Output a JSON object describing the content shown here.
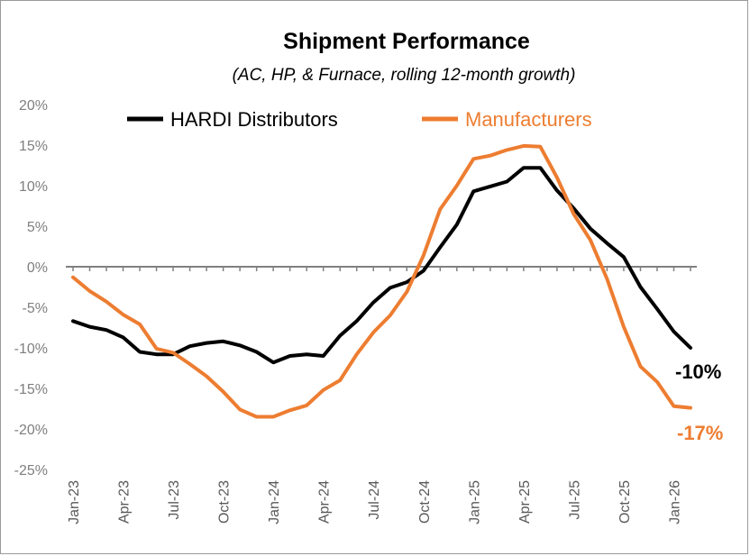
{
  "chart_data": {
    "type": "line",
    "title": "Shipment Performance",
    "subtitle": "(AC, HP, & Furnace, rolling 12-month growth)",
    "xlabel": "",
    "ylabel": "",
    "ylim": [
      -25,
      20
    ],
    "yticks": [
      20,
      15,
      10,
      5,
      0,
      -5,
      -10,
      -15,
      -20,
      -25
    ],
    "ytick_labels": [
      "20%",
      "15%",
      "10%",
      "5%",
      "0%",
      "-5%",
      "-10%",
      "-15%",
      "-20%",
      "-25%"
    ],
    "x": [
      "Jan-23",
      "Feb-23",
      "Mar-23",
      "Apr-23",
      "May-23",
      "Jun-23",
      "Jul-23",
      "Aug-23",
      "Sep-23",
      "Oct-23",
      "Nov-23",
      "Dec-23",
      "Jan-24",
      "Feb-24",
      "Mar-24",
      "Apr-24",
      "May-24",
      "Jun-24",
      "Jul-24",
      "Aug-24",
      "Sep-24",
      "Oct-24",
      "Nov-24",
      "Dec-24",
      "Jan-25",
      "Feb-25",
      "Mar-25",
      "Apr-25",
      "May-25",
      "Jun-25",
      "Jul-25",
      "Aug-25",
      "Sep-25",
      "Oct-25",
      "Nov-25",
      "Dec-25",
      "Jan-26",
      "Feb-26"
    ],
    "xtick_labels": [
      "Jan-23",
      "Apr-23",
      "Jul-23",
      "Oct-23",
      "Jan-24",
      "Apr-24",
      "Jul-24",
      "Oct-24",
      "Jan-25",
      "Apr-25",
      "Jul-25",
      "Oct-25",
      "Jan-26"
    ],
    "xtick_index": [
      0,
      3,
      6,
      9,
      12,
      15,
      18,
      21,
      24,
      27,
      30,
      33,
      36
    ],
    "series": [
      {
        "name": "HARDI Distributors",
        "color": "#000000",
        "values": [
          -6.7,
          -7.4,
          -7.8,
          -8.7,
          -10.5,
          -10.8,
          -10.8,
          -9.8,
          -9.4,
          -9.2,
          -9.7,
          -10.5,
          -11.8,
          -11.0,
          -10.8,
          -11.0,
          -8.5,
          -6.7,
          -4.4,
          -2.6,
          -1.9,
          -0.5,
          2.4,
          5.2,
          9.3,
          9.9,
          10.5,
          12.2,
          12.2,
          9.4,
          7.2,
          4.7,
          2.9,
          1.2,
          -2.5,
          -5.2,
          -8.0,
          -10.0
        ],
        "end_label": "-10%"
      },
      {
        "name": "Manufacturers",
        "color": "#ed7d31",
        "values": [
          -1.3,
          -3.0,
          -4.3,
          -5.9,
          -7.1,
          -10.1,
          -10.6,
          -12.0,
          -13.5,
          -15.4,
          -17.6,
          -18.5,
          -18.5,
          -17.7,
          -17.1,
          -15.2,
          -14.0,
          -10.8,
          -8.1,
          -6.0,
          -3.1,
          1.4,
          7.1,
          10.0,
          13.3,
          13.7,
          14.4,
          14.9,
          14.8,
          11.0,
          6.5,
          3.3,
          -1.5,
          -7.4,
          -12.3,
          -14.2,
          -17.2,
          -17.4
        ],
        "end_label": "-17%"
      }
    ],
    "legend": "top"
  }
}
